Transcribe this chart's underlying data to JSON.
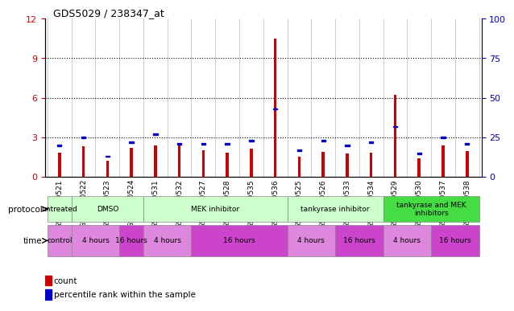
{
  "title": "GDS5029 / 238347_at",
  "samples": [
    "GSM1340521",
    "GSM1340522",
    "GSM1340523",
    "GSM1340524",
    "GSM1340531",
    "GSM1340532",
    "GSM1340527",
    "GSM1340528",
    "GSM1340535",
    "GSM1340536",
    "GSM1340525",
    "GSM1340526",
    "GSM1340533",
    "GSM1340534",
    "GSM1340529",
    "GSM1340530",
    "GSM1340537",
    "GSM1340538"
  ],
  "count_values": [
    1.8,
    2.3,
    1.2,
    2.2,
    2.4,
    2.4,
    2.0,
    1.8,
    2.1,
    10.5,
    1.5,
    1.9,
    1.75,
    1.85,
    6.2,
    1.4,
    2.4,
    1.95
  ],
  "percentile_values": [
    20,
    25,
    13,
    22,
    27,
    21,
    21,
    21,
    23,
    43,
    17,
    23,
    20,
    22,
    32,
    15,
    25,
    21
  ],
  "ylim_left": [
    0,
    12
  ],
  "ylim_right": [
    0,
    100
  ],
  "yticks_left": [
    0,
    3,
    6,
    9,
    12
  ],
  "yticks_right": [
    0,
    25,
    50,
    75,
    100
  ],
  "count_color": "#cc0000",
  "percentile_color": "#0000cc",
  "bar_width": 0.12,
  "background_color": "#ffffff",
  "plot_bg_color": "#ffffff",
  "proto_groups": [
    {
      "label": "untreated",
      "start": 0,
      "end": 1,
      "color": "#ccffcc"
    },
    {
      "label": "DMSO",
      "start": 1,
      "end": 4,
      "color": "#ccffcc"
    },
    {
      "label": "MEK inhibitor",
      "start": 4,
      "end": 10,
      "color": "#ccffcc"
    },
    {
      "label": "tankyrase inhibitor",
      "start": 10,
      "end": 14,
      "color": "#ccffcc"
    },
    {
      "label": "tankyrase and MEK\ninhibitors",
      "start": 14,
      "end": 18,
      "color": "#44dd44"
    }
  ],
  "time_groups": [
    {
      "label": "control",
      "start": 0,
      "end": 1,
      "color": "#dd88dd"
    },
    {
      "label": "4 hours",
      "start": 1,
      "end": 3,
      "color": "#dd88dd"
    },
    {
      "label": "16 hours",
      "start": 3,
      "end": 4,
      "color": "#cc44cc"
    },
    {
      "label": "4 hours",
      "start": 4,
      "end": 6,
      "color": "#dd88dd"
    },
    {
      "label": "16 hours",
      "start": 6,
      "end": 10,
      "color": "#cc44cc"
    },
    {
      "label": "4 hours",
      "start": 10,
      "end": 12,
      "color": "#dd88dd"
    },
    {
      "label": "16 hours",
      "start": 12,
      "end": 14,
      "color": "#cc44cc"
    },
    {
      "label": "4 hours",
      "start": 14,
      "end": 16,
      "color": "#dd88dd"
    },
    {
      "label": "16 hours",
      "start": 16,
      "end": 18,
      "color": "#cc44cc"
    }
  ]
}
